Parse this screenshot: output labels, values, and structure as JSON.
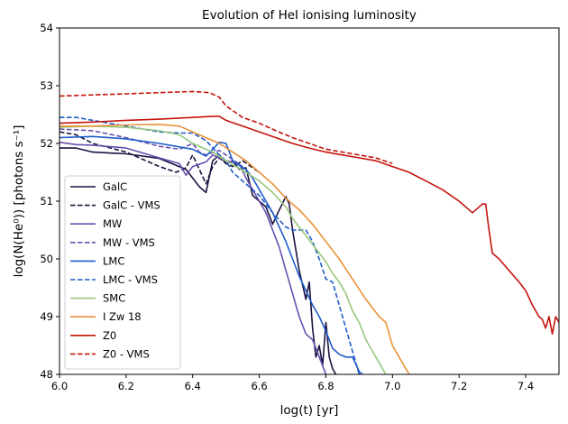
{
  "chart_data": {
    "type": "line",
    "title": "Evolution of HeI ionising luminosity",
    "xlabel": "log(t) [yr]",
    "ylabel": "log(N(He⁰)) [photons s⁻¹]",
    "xlim": [
      6.0,
      7.5
    ],
    "ylim": [
      48,
      54
    ],
    "xticks": [
      "6.0",
      "6.2",
      "6.4",
      "6.6",
      "6.8",
      "7.0",
      "7.2",
      "7.4"
    ],
    "yticks": [
      "48",
      "49",
      "50",
      "51",
      "52",
      "53",
      "54"
    ],
    "grid": false,
    "legend_position": "lower-left",
    "series": [
      {
        "name": "GalC",
        "color": "#1b1440",
        "dash": "solid",
        "x": [
          6.0,
          6.05,
          6.1,
          6.2,
          6.3,
          6.38,
          6.42,
          6.44,
          6.46,
          6.48,
          6.5,
          6.52,
          6.54,
          6.56,
          6.58,
          6.6,
          6.62,
          6.64,
          6.66,
          6.68,
          6.69,
          6.7,
          6.72,
          6.74,
          6.75,
          6.76,
          6.77,
          6.78,
          6.79,
          6.8,
          6.81,
          6.82,
          6.83
        ],
        "y": [
          51.92,
          51.92,
          51.85,
          51.82,
          51.74,
          51.55,
          51.25,
          51.15,
          51.7,
          51.8,
          51.65,
          51.7,
          51.55,
          51.58,
          51.1,
          51.0,
          50.9,
          50.6,
          50.85,
          51.08,
          50.95,
          50.5,
          49.8,
          49.3,
          49.6,
          48.8,
          48.3,
          48.5,
          48.15,
          48.9,
          48.3,
          48.1,
          48.0
        ]
      },
      {
        "name": "GalC - VMS",
        "color": "#1b1440",
        "dash": "dashed",
        "x": [
          6.0,
          6.05,
          6.1,
          6.2,
          6.3,
          6.35,
          6.38,
          6.4,
          6.42,
          6.44,
          6.46,
          6.48,
          6.5,
          6.52,
          6.55,
          6.6
        ],
        "y": [
          52.2,
          52.15,
          52.0,
          51.85,
          51.6,
          51.5,
          51.58,
          51.8,
          51.55,
          51.3,
          51.6,
          51.75,
          51.65,
          51.6,
          51.7,
          51.5
        ]
      },
      {
        "name": "MW",
        "color": "#6a4fb0",
        "dash": "solid",
        "x": [
          6.0,
          6.05,
          6.1,
          6.2,
          6.3,
          6.36,
          6.38,
          6.4,
          6.44,
          6.46,
          6.5,
          6.54,
          6.56,
          6.58,
          6.6,
          6.62,
          6.64,
          6.66,
          6.68,
          6.7,
          6.72,
          6.74,
          6.76,
          6.78,
          6.8
        ],
        "y": [
          52.02,
          51.98,
          51.97,
          51.92,
          51.75,
          51.65,
          51.45,
          51.6,
          51.68,
          51.8,
          51.7,
          51.65,
          51.4,
          51.2,
          51.0,
          50.8,
          50.5,
          50.2,
          49.8,
          49.4,
          49.0,
          48.7,
          48.6,
          48.3,
          48.0
        ]
      },
      {
        "name": "MW - VMS",
        "color": "#6a4fb0",
        "dash": "dashed",
        "x": [
          6.0,
          6.1,
          6.2,
          6.3,
          6.36,
          6.4,
          6.42,
          6.44,
          6.48,
          6.5,
          6.55
        ],
        "y": [
          52.25,
          52.22,
          52.1,
          51.95,
          51.9,
          52.0,
          51.85,
          51.8,
          51.88,
          51.8,
          51.6
        ]
      },
      {
        "name": "LMC",
        "color": "#1f5cc8",
        "dash": "solid",
        "x": [
          6.0,
          6.1,
          6.2,
          6.3,
          6.4,
          6.44,
          6.46,
          6.48,
          6.5,
          6.52,
          6.54,
          6.56,
          6.58,
          6.6,
          6.62,
          6.64,
          6.66,
          6.68,
          6.7,
          6.72,
          6.74,
          6.76,
          6.78,
          6.8,
          6.82,
          6.84,
          6.86,
          6.88,
          6.9,
          6.91
        ],
        "y": [
          52.1,
          52.12,
          52.08,
          52.0,
          51.9,
          51.78,
          51.9,
          52.02,
          52.0,
          51.7,
          51.62,
          51.55,
          51.4,
          51.2,
          51.0,
          50.8,
          50.55,
          50.3,
          50.0,
          49.7,
          49.45,
          49.2,
          49.0,
          48.75,
          48.45,
          48.35,
          48.3,
          48.3,
          48.05,
          48.0
        ]
      },
      {
        "name": "LMC - VMS",
        "color": "#1f5cc8",
        "dash": "dashed",
        "x": [
          6.0,
          6.05,
          6.1,
          6.2,
          6.3,
          6.36,
          6.4,
          6.44,
          6.48,
          6.5,
          6.52,
          6.56,
          6.6,
          6.64,
          6.68,
          6.7,
          6.74,
          6.76,
          6.78,
          6.8,
          6.82,
          6.84,
          6.86,
          6.88,
          6.9
        ],
        "y": [
          52.45,
          52.45,
          52.4,
          52.3,
          52.2,
          52.18,
          52.18,
          52.05,
          51.8,
          51.7,
          51.5,
          51.3,
          51.1,
          50.8,
          50.55,
          50.5,
          50.5,
          50.3,
          50.0,
          49.65,
          49.6,
          49.2,
          48.8,
          48.4,
          48.0
        ]
      },
      {
        "name": "SMC",
        "color": "#98c77e",
        "dash": "solid",
        "x": [
          6.0,
          6.1,
          6.2,
          6.3,
          6.36,
          6.4,
          6.46,
          6.5,
          6.56,
          6.6,
          6.64,
          6.68,
          6.7,
          6.74,
          6.78,
          6.8,
          6.82,
          6.84,
          6.86,
          6.88,
          6.9,
          6.92,
          6.94,
          6.96,
          6.98
        ],
        "y": [
          52.28,
          52.3,
          52.28,
          52.22,
          52.15,
          52.0,
          51.85,
          51.7,
          51.5,
          51.35,
          51.15,
          50.9,
          50.7,
          50.4,
          50.1,
          49.95,
          49.75,
          49.6,
          49.4,
          49.1,
          48.9,
          48.6,
          48.4,
          48.2,
          48.0
        ]
      },
      {
        "name": "I Zw 18",
        "color": "#e8933a",
        "dash": "solid",
        "x": [
          6.0,
          6.1,
          6.2,
          6.3,
          6.36,
          6.4,
          6.44,
          6.48,
          6.52,
          6.56,
          6.6,
          6.64,
          6.68,
          6.72,
          6.76,
          6.8,
          6.84,
          6.88,
          6.92,
          6.96,
          6.98,
          7.0,
          7.02,
          7.04,
          7.05
        ],
        "y": [
          52.3,
          52.3,
          52.32,
          52.33,
          52.3,
          52.2,
          52.1,
          52.0,
          51.85,
          51.7,
          51.5,
          51.3,
          51.05,
          50.85,
          50.6,
          50.3,
          50.0,
          49.65,
          49.3,
          49.0,
          48.9,
          48.5,
          48.3,
          48.1,
          48.0
        ]
      },
      {
        "name": "Z0",
        "color": "#c4140c",
        "dash": "solid",
        "x": [
          6.0,
          6.1,
          6.2,
          6.3,
          6.4,
          6.46,
          6.48,
          6.5,
          6.55,
          6.6,
          6.65,
          6.7,
          6.75,
          6.8,
          6.85,
          6.9,
          6.95,
          7.0,
          7.05,
          7.1,
          7.15,
          7.2,
          7.24,
          7.27,
          7.28,
          7.29,
          7.3,
          7.32,
          7.35,
          7.38,
          7.4,
          7.42,
          7.44,
          7.45,
          7.46,
          7.47,
          7.48,
          7.49,
          7.5
        ],
        "y": [
          52.35,
          52.37,
          52.4,
          52.42,
          52.45,
          52.47,
          52.47,
          52.4,
          52.3,
          52.2,
          52.1,
          52.0,
          51.92,
          51.85,
          51.8,
          51.75,
          51.7,
          51.6,
          51.5,
          51.35,
          51.2,
          51.0,
          50.8,
          50.95,
          50.95,
          50.5,
          50.1,
          50.0,
          49.8,
          49.6,
          49.45,
          49.2,
          49.0,
          48.95,
          48.8,
          49.0,
          48.7,
          49.0,
          48.9
        ]
      },
      {
        "name": "Z0 - VMS",
        "color": "#c4140c",
        "dash": "dashed",
        "x": [
          6.0,
          6.1,
          6.2,
          6.3,
          6.4,
          6.45,
          6.48,
          6.5,
          6.55,
          6.6,
          6.65,
          6.7,
          6.75,
          6.8,
          6.85,
          6.9,
          6.95,
          7.0
        ],
        "y": [
          52.82,
          52.84,
          52.86,
          52.88,
          52.9,
          52.88,
          52.8,
          52.65,
          52.45,
          52.35,
          52.22,
          52.1,
          52.0,
          51.9,
          51.85,
          51.8,
          51.75,
          51.65
        ]
      }
    ]
  }
}
